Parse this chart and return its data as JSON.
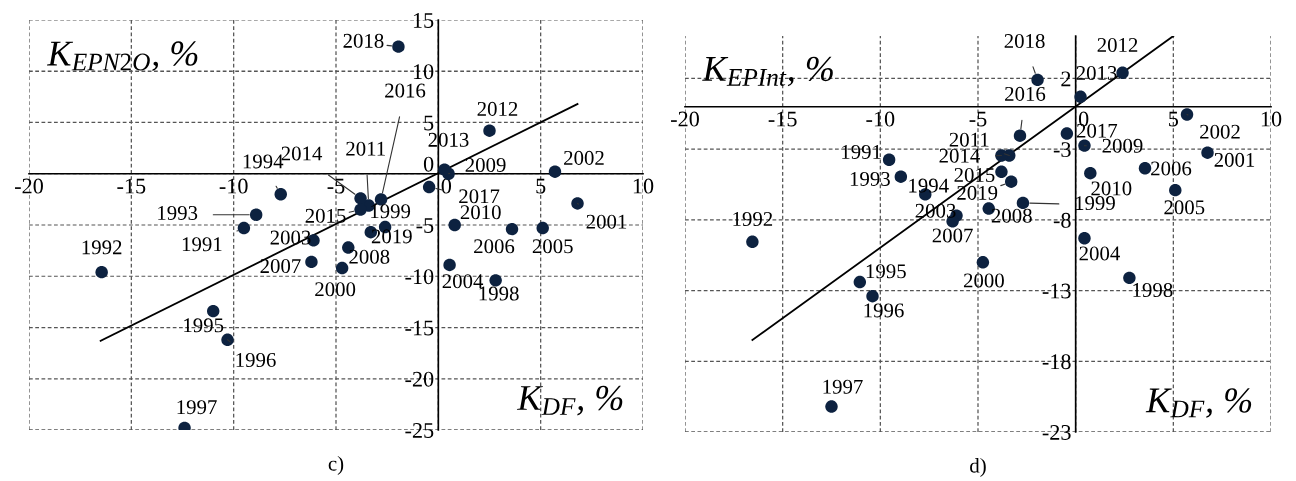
{
  "chart_data": [
    {
      "type": "scatter",
      "xlabel": "K$_{DF}$, %",
      "ylabel": "K$_{EPN2O}$, %",
      "xlim": [
        -20,
        10
      ],
      "ylim": [
        -25,
        15
      ],
      "xticks": [
        -20,
        -15,
        -10,
        -5,
        0,
        5,
        10
      ],
      "yticks": [
        -25,
        -20,
        -15,
        -10,
        -5,
        0,
        5,
        10,
        15
      ],
      "grid": true,
      "series": [
        {
          "color": "#0d2240",
          "marker": "circle",
          "x": [
            -9.5,
            -16.45,
            -8.9,
            -7.7,
            -11.0,
            -10.3,
            -12.4,
            2.8,
            -2.6,
            -4.7,
            6.8,
            5.7,
            -6.1,
            0.55,
            5.1,
            3.6,
            -6.2,
            -4.4,
            0.5,
            0.8,
            -3.4,
            2.5,
            0.3,
            -3.8,
            -3.8,
            -2.8,
            -0.45,
            -1.95,
            -3.3
          ],
          "values": [
            -5.3,
            -9.6,
            -4.0,
            -2.0,
            -13.4,
            -16.2,
            -24.8,
            -10.4,
            -5.2,
            -9.2,
            -2.9,
            0.2,
            -6.5,
            -8.9,
            -5.3,
            -5.4,
            -8.6,
            -7.2,
            0.0,
            -5.0,
            -3.1,
            4.2,
            0.4,
            -2.4,
            -3.5,
            -2.5,
            -1.3,
            12.4,
            -5.7
          ]
        },
        {
          "type": "line",
          "color": "#000000",
          "x": [
            -16.5,
            6.8
          ],
          "values": [
            -16.3,
            6.8
          ]
        }
      ],
      "annotations": [
        "c)",
        {
          "text": "1991",
          "x": -9.5,
          "y": -5.3
        },
        {
          "text": "1992",
          "x": -16.45,
          "y": -9.6
        },
        {
          "text": "1993",
          "x": -8.9,
          "y": -4.0
        },
        {
          "text": "1994",
          "x": -7.7,
          "y": -2.0
        },
        {
          "text": "1995",
          "x": -11.0,
          "y": -13.4
        },
        {
          "text": "1996",
          "x": -10.3,
          "y": -16.2
        },
        {
          "text": "1997",
          "x": -12.4,
          "y": -24.8
        },
        {
          "text": "1998",
          "x": 2.8,
          "y": -10.4
        },
        {
          "text": "1999",
          "x": -2.6,
          "y": -5.2
        },
        {
          "text": "2000",
          "x": -4.7,
          "y": -9.2
        },
        {
          "text": "2001",
          "x": 6.8,
          "y": -2.9
        },
        {
          "text": "2002",
          "x": 5.7,
          "y": 0.2
        },
        {
          "text": "2003",
          "x": -6.1,
          "y": -6.5
        },
        {
          "text": "2004",
          "x": 0.55,
          "y": -8.9
        },
        {
          "text": "2005",
          "x": 5.1,
          "y": -5.3
        },
        {
          "text": "2006",
          "x": 3.6,
          "y": -5.4
        },
        {
          "text": "2007",
          "x": -6.2,
          "y": -8.6
        },
        {
          "text": "2008",
          "x": -4.4,
          "y": -7.2
        },
        {
          "text": "2009",
          "x": 0.5,
          "y": 0.0
        },
        {
          "text": "2010",
          "x": 0.8,
          "y": -5.0
        },
        {
          "text": "2011",
          "x": -3.4,
          "y": -3.1
        },
        {
          "text": "2012",
          "x": 2.5,
          "y": 4.2
        },
        {
          "text": "2013",
          "x": 0.3,
          "y": 0.4
        },
        {
          "text": "2014",
          "x": -3.8,
          "y": -2.4
        },
        {
          "text": "2015",
          "x": -3.8,
          "y": -3.5
        },
        {
          "text": "2016",
          "x": -2.8,
          "y": -2.5
        },
        {
          "text": "2017",
          "x": -0.45,
          "y": -1.3
        },
        {
          "text": "2018",
          "x": -1.95,
          "y": 12.4
        },
        {
          "text": "2019",
          "x": -3.3,
          "y": -5.7
        }
      ]
    },
    {
      "type": "scatter",
      "xlabel": "K$_{DF}$, %",
      "ylabel": "K$_{EPInt}$, %",
      "xlim": [
        -20,
        10
      ],
      "ylim": [
        -23,
        5
      ],
      "xticks": [
        -20,
        -15,
        -10,
        -5,
        0,
        5,
        10
      ],
      "yticks": [
        -23,
        -18,
        -13,
        -8,
        -3,
        2
      ],
      "grid": true,
      "series": [
        {
          "color": "#0d2240",
          "marker": "circle",
          "x": [
            -9.55,
            -16.55,
            -8.95,
            -7.7,
            -11.05,
            -10.4,
            -12.5,
            2.75,
            -2.7,
            -4.75,
            6.75,
            5.7,
            -6.1,
            0.45,
            5.1,
            3.55,
            -6.3,
            -4.45,
            0.45,
            0.75,
            -3.4,
            2.4,
            0.25,
            -3.8,
            -3.8,
            -2.85,
            -0.45,
            -1.95,
            -3.3
          ],
          "values": [
            -3.75,
            -9.55,
            -4.95,
            -6.2,
            -12.4,
            -13.4,
            -21.2,
            -12.1,
            -6.8,
            -11.0,
            -3.25,
            -0.55,
            -7.7,
            -9.3,
            -5.9,
            -4.35,
            -8.1,
            -7.2,
            -2.75,
            -4.7,
            -3.45,
            2.4,
            0.7,
            -3.45,
            -4.6,
            -2.05,
            -1.9,
            1.9,
            -5.3
          ]
        },
        {
          "type": "line",
          "color": "#000000",
          "x": [
            -16.55,
            5.0
          ],
          "values": [
            -16.5,
            5.0
          ]
        }
      ],
      "annotations": [
        "d)",
        {
          "text": "1991",
          "x": -9.55,
          "y": -3.75
        },
        {
          "text": "1992",
          "x": -16.55,
          "y": -9.55
        },
        {
          "text": "1993",
          "x": -8.95,
          "y": -4.95
        },
        {
          "text": "1994",
          "x": -7.7,
          "y": -6.2
        },
        {
          "text": "1995",
          "x": -11.05,
          "y": -12.4
        },
        {
          "text": "1996",
          "x": -10.4,
          "y": -13.4
        },
        {
          "text": "1997",
          "x": -12.5,
          "y": -21.2
        },
        {
          "text": "1998",
          "x": 2.75,
          "y": -12.1
        },
        {
          "text": "1999",
          "x": -2.7,
          "y": -6.8
        },
        {
          "text": "2000",
          "x": -4.75,
          "y": -11.0
        },
        {
          "text": "2001",
          "x": 6.75,
          "y": -3.25
        },
        {
          "text": "2002",
          "x": 5.7,
          "y": -0.55
        },
        {
          "text": "2003",
          "x": -6.1,
          "y": -7.7
        },
        {
          "text": "2004",
          "x": 0.45,
          "y": -9.3
        },
        {
          "text": "2005",
          "x": 5.1,
          "y": -5.9
        },
        {
          "text": "2006",
          "x": 3.55,
          "y": -4.35
        },
        {
          "text": "2007",
          "x": -6.3,
          "y": -8.1
        },
        {
          "text": "2008",
          "x": -4.45,
          "y": -7.2
        },
        {
          "text": "2009",
          "x": 0.45,
          "y": -2.75
        },
        {
          "text": "2010",
          "x": 0.75,
          "y": -4.7
        },
        {
          "text": "2011",
          "x": -3.4,
          "y": -3.45
        },
        {
          "text": "2012",
          "x": 2.4,
          "y": 2.4
        },
        {
          "text": "2013",
          "x": 0.25,
          "y": 0.7
        },
        {
          "text": "2014",
          "x": -3.8,
          "y": -3.45
        },
        {
          "text": "2015",
          "x": -3.8,
          "y": -4.6
        },
        {
          "text": "2016",
          "x": -2.85,
          "y": -2.05
        },
        {
          "text": "2017",
          "x": -0.45,
          "y": -1.9
        },
        {
          "text": "2018",
          "x": -1.95,
          "y": 1.9
        },
        {
          "text": "2019",
          "x": -3.3,
          "y": -5.3
        }
      ]
    }
  ]
}
